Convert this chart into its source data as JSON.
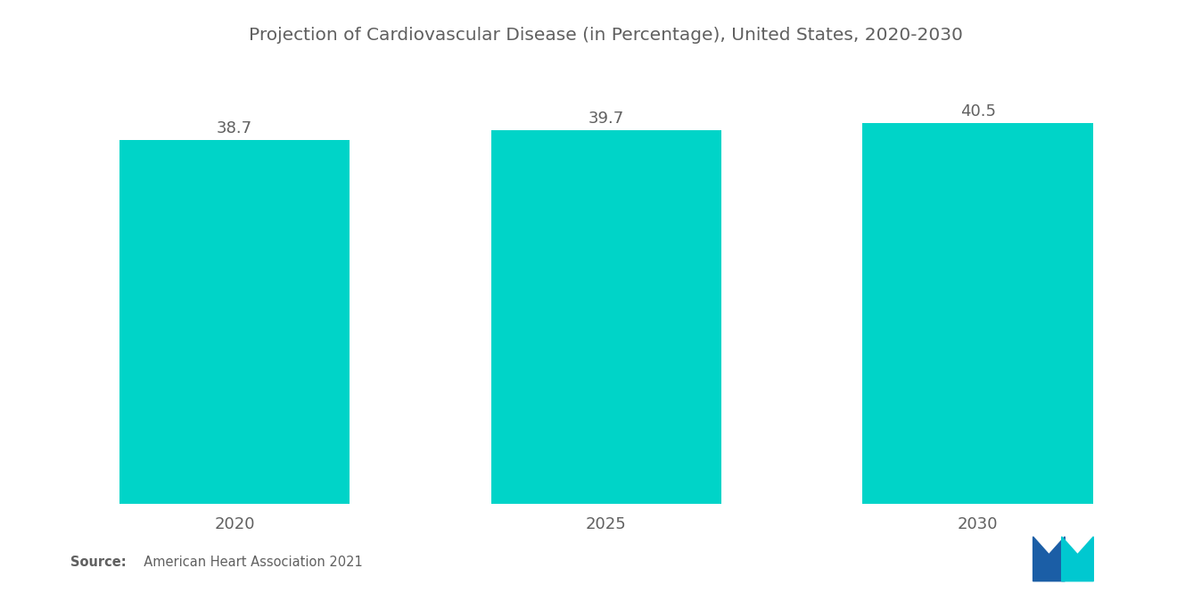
{
  "title": "Projection of Cardiovascular Disease (in Percentage), United States, 2020-2030",
  "categories": [
    "2020",
    "2025",
    "2030"
  ],
  "values": [
    38.7,
    39.7,
    40.5
  ],
  "bar_color": "#00D4C8",
  "background_color": "#ffffff",
  "text_color": "#606060",
  "title_fontsize": 14.5,
  "label_fontsize": 13,
  "value_fontsize": 13,
  "ylim": [
    0,
    46
  ],
  "bar_width": 0.62,
  "source_bold": "Source:",
  "source_rest": "  American Heart Association 2021",
  "logo_blue": "#1B5EA6",
  "logo_teal": "#00C8D0"
}
